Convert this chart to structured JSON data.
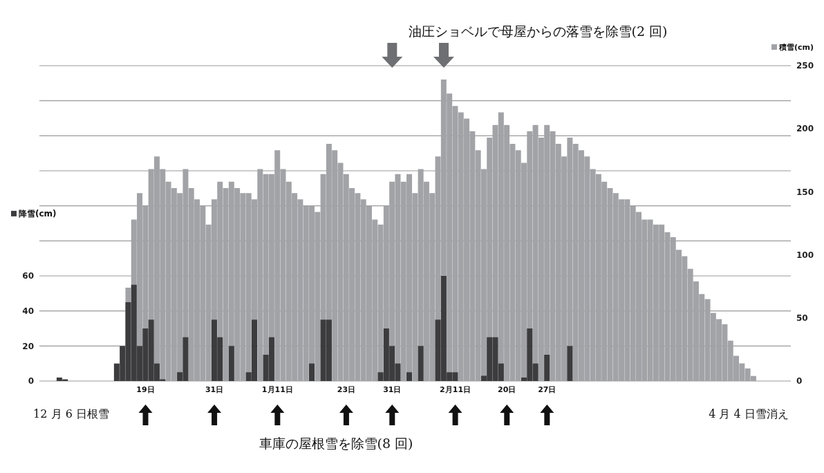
{
  "chart_data": {
    "type": "bar",
    "categories": [
      null,
      null,
      null,
      null,
      null,
      null,
      null,
      null,
      null,
      null,
      null,
      null,
      null,
      null,
      null,
      null,
      null,
      null,
      "19日",
      null,
      null,
      null,
      null,
      null,
      null,
      null,
      null,
      null,
      null,
      null,
      "31日",
      null,
      null,
      null,
      null,
      null,
      null,
      null,
      null,
      null,
      null,
      "1月11日",
      null,
      null,
      null,
      null,
      null,
      null,
      null,
      null,
      null,
      null,
      null,
      "23日",
      null,
      null,
      null,
      null,
      null,
      null,
      null,
      "31日",
      null,
      null,
      null,
      null,
      null,
      null,
      null,
      null,
      null,
      null,
      "2月11日",
      null,
      null,
      null,
      null,
      null,
      null,
      null,
      null,
      "20日",
      null,
      null,
      null,
      null,
      null,
      null,
      "27日",
      null,
      null,
      null,
      null,
      null,
      null,
      null,
      null,
      null,
      null,
      null,
      null,
      null,
      null,
      null,
      null,
      null,
      null,
      null,
      null,
      null,
      null,
      null,
      null,
      null,
      null,
      null,
      null,
      null,
      null,
      null,
      null,
      null,
      null,
      null,
      null,
      null,
      null,
      null,
      null,
      null,
      null
    ],
    "series": [
      {
        "name": "積雪(cm)",
        "color": "#a2a3a7",
        "axis": "y2",
        "values": [
          0,
          0,
          0,
          0,
          0,
          0,
          0,
          0,
          0,
          0,
          0,
          0,
          0,
          null,
          null,
          74,
          128,
          149,
          139,
          168,
          178,
          168,
          158,
          153,
          149,
          168,
          153,
          144,
          139,
          124,
          144,
          158,
          153,
          158,
          153,
          149,
          149,
          144,
          168,
          164,
          164,
          183,
          168,
          158,
          149,
          144,
          139,
          139,
          134,
          164,
          188,
          183,
          173,
          164,
          153,
          149,
          144,
          139,
          128,
          124,
          139,
          158,
          164,
          158,
          164,
          149,
          168,
          158,
          149,
          178,
          239,
          228,
          218,
          213,
          208,
          198,
          183,
          168,
          193,
          203,
          213,
          203,
          188,
          183,
          173,
          198,
          203,
          193,
          203,
          198,
          188,
          178,
          193,
          188,
          183,
          178,
          168,
          164,
          158,
          153,
          149,
          144,
          144,
          139,
          134,
          128,
          128,
          124,
          124,
          118,
          114,
          104,
          99,
          89,
          79,
          69,
          65,
          54,
          49,
          45,
          32,
          20,
          14,
          10,
          4,
          0,
          0,
          0,
          0,
          0,
          0
        ]
      },
      {
        "name": "降雪(cm)",
        "color": "#3c3c3e",
        "axis": "y",
        "values": [
          0,
          0,
          0,
          2,
          1,
          0,
          0,
          0,
          0,
          0,
          0,
          0,
          0,
          10,
          20,
          45,
          55,
          20,
          30,
          35,
          10,
          1,
          0,
          0,
          5,
          25,
          0,
          0,
          0,
          0,
          35,
          25,
          0,
          20,
          0,
          0,
          5,
          35,
          0,
          15,
          25,
          0,
          0,
          0,
          0,
          0,
          0,
          10,
          0,
          35,
          35,
          0,
          0,
          0,
          0,
          0,
          0,
          0,
          0,
          5,
          30,
          20,
          10,
          0,
          5,
          0,
          20,
          0,
          0,
          35,
          60,
          5,
          5,
          0,
          0,
          0,
          0,
          3,
          25,
          25,
          10,
          0,
          0,
          0,
          2,
          30,
          10,
          0,
          15,
          0,
          0,
          0,
          20,
          0,
          0,
          0,
          0,
          0,
          0,
          0,
          0,
          0,
          0,
          0,
          0,
          0,
          0,
          0,
          0,
          0,
          0,
          0,
          0,
          0,
          0,
          0,
          0,
          0,
          0,
          0,
          0,
          0,
          0,
          0,
          0,
          0,
          0,
          0,
          0,
          0,
          0
        ]
      }
    ],
    "ylim": [
      0,
      180
    ],
    "yticks": [
      0,
      20,
      40,
      60,
      {
        "value": 80,
        "label": null
      },
      {
        "value": 100,
        "label": null
      },
      {
        "value": 120,
        "label": null
      },
      {
        "value": 140,
        "label": null
      },
      {
        "value": 160,
        "label": null
      },
      {
        "value": 180,
        "label": null
      }
    ],
    "y2lim": [
      0,
      250
    ],
    "y2ticks": [
      0,
      50,
      100,
      150,
      200,
      250
    ],
    "grid": "y",
    "legend": "top",
    "annotations": [
      "油圧ショベルで母屋からの落雪を除雪(2 回)",
      "12 月 6 日根雪",
      "4 月 4 日雪消え",
      "車庫の屋根雪を除雪(8 回)"
    ]
  }
}
